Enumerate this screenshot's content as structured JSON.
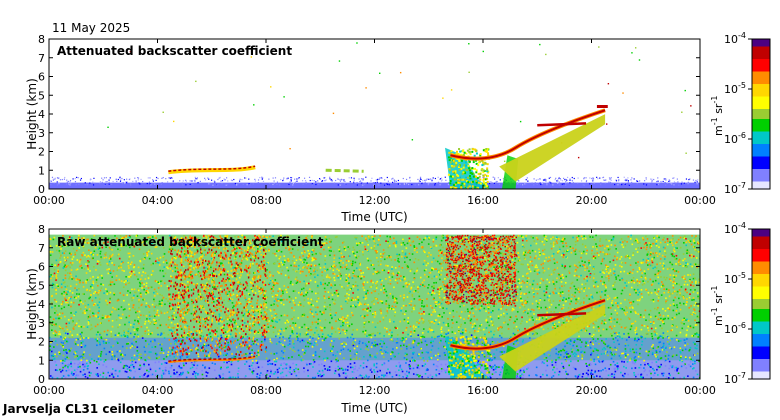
{
  "date": "11 May 2025",
  "station": "Jarvselja CL31 ceilometer",
  "colorbar": {
    "ticks": [
      "10-4",
      "10-5",
      "10-6",
      "10-7"
    ],
    "tick_base": "10",
    "tick_exponents": [
      "-4",
      "-5",
      "-6",
      "-7"
    ],
    "unit_a": "m",
    "unit_a_exp": "-1",
    "unit_b": "sr",
    "unit_b_exp": "-1",
    "colors": [
      "#4b0082",
      "#c00000",
      "#ff0000",
      "#ff8c00",
      "#ffd700",
      "#ffff00",
      "#9acd32",
      "#00d000",
      "#00c8c8",
      "#0080ff",
      "#0000ff",
      "#8080ff",
      "#e6e6ff"
    ]
  },
  "chart_data": [
    {
      "type": "heatmap",
      "title": "Attenuated backscatter coefficient",
      "xlabel": "Time (UTC)",
      "ylabel": "Height (km)",
      "x_ticks": [
        "00:00",
        "04:00",
        "08:00",
        "12:00",
        "16:00",
        "20:00",
        "00:00"
      ],
      "y_ticks": [
        "0",
        "1",
        "2",
        "3",
        "4",
        "5",
        "6",
        "7",
        "8"
      ],
      "xlim_hours": [
        0,
        24
      ],
      "ylim_km": [
        0,
        8
      ],
      "clim": [
        1e-07,
        0.0001
      ],
      "features": [
        {
          "name": "boundary layer",
          "t_start": 0,
          "t_end": 24,
          "top_km": 0.5
        },
        {
          "name": "cloud layer A",
          "t_start": 4.4,
          "t_end": 7.6,
          "height_km": 1.0
        },
        {
          "name": "cloud layer B",
          "t_start": 10.2,
          "t_end": 11.6,
          "height_km": 1.0
        },
        {
          "name": "rising cloud",
          "t_start": 14.8,
          "t_end": 20.5,
          "height_start_km": 1.8,
          "height_end_km": 4.2
        },
        {
          "name": "precipitation",
          "t_start": 14.6,
          "t_end": 17.2,
          "top_km": 2.2
        }
      ]
    },
    {
      "type": "heatmap",
      "title": "Raw attenuated backscatter coefficient",
      "xlabel": "Time (UTC)",
      "ylabel": "Height (km)",
      "x_ticks": [
        "00:00",
        "04:00",
        "08:00",
        "12:00",
        "16:00",
        "20:00",
        "00:00"
      ],
      "y_ticks": [
        "0",
        "1",
        "2",
        "3",
        "4",
        "5",
        "6",
        "7",
        "8"
      ],
      "xlim_hours": [
        0,
        24
      ],
      "ylim_km": [
        0,
        8
      ],
      "clim": [
        1e-07,
        0.0001
      ],
      "data_top_km": 7.7,
      "features": [
        {
          "name": "noise field",
          "t_start": 0,
          "t_end": 24,
          "top_km": 7.7
        },
        {
          "name": "cloud layer A",
          "t_start": 4.4,
          "t_end": 7.6,
          "height_km": 1.0
        },
        {
          "name": "rising cloud",
          "t_start": 14.8,
          "t_end": 20.5,
          "height_start_km": 1.8,
          "height_end_km": 4.2
        },
        {
          "name": "precipitation",
          "t_start": 14.6,
          "t_end": 17.2,
          "top_km": 7.7
        }
      ]
    }
  ]
}
